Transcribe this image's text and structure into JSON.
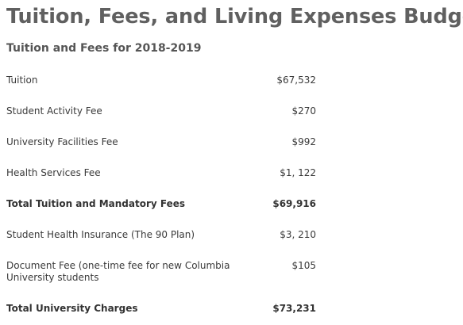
{
  "page": {
    "title": "Tuition, Fees, and Living Expenses Budget",
    "section_title": "Tuition and Fees for 2018-2019"
  },
  "fees": {
    "rows": [
      {
        "label": "Tuition",
        "amount": "$67,532",
        "total": false
      },
      {
        "label": "Student Activity Fee",
        "amount": "$270",
        "total": false
      },
      {
        "label": "University Facilities Fee",
        "amount": "$992",
        "total": false
      },
      {
        "label": "Health Services Fee",
        "amount": "$1, 122",
        "total": false
      },
      {
        "label": "Total Tuition and Mandatory Fees",
        "amount": "$69,916",
        "total": true
      },
      {
        "label": "Student Health Insurance (The 90 Plan)",
        "amount": "$3, 210",
        "total": false
      },
      {
        "label": "Document Fee (one-time fee for new Columbia University students",
        "amount": "$105",
        "total": false
      },
      {
        "label": "Total University Charges",
        "amount": "$73,231",
        "total": true
      }
    ]
  }
}
